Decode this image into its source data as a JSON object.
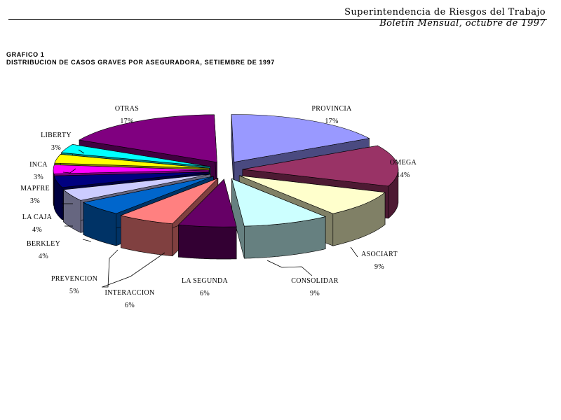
{
  "header": {
    "line1": "Superintendencia de Riesgos del Trabajo",
    "line2": "Boletín Mensual, octubre de 1997"
  },
  "chart_title": {
    "line1": "GRAFICO 1",
    "line2": "DISTRIBUCION DE CASOS GRAVES POR ASEGURADORA, SETIEMBRE DE 1997"
  },
  "chart_data": {
    "type": "pie",
    "title": "DISTRIBUCION DE CASOS GRAVES POR ASEGURADORA, SETIEMBRE DE 1997",
    "exploded": true,
    "three_d": true,
    "slices": [
      {
        "label": "PROVINCIA",
        "value": 17,
        "pct_label": "17%",
        "color": "#9999ff",
        "side": "#4a4a80"
      },
      {
        "label": "OMEGA",
        "value": 14,
        "pct_label": "14%",
        "color": "#993366",
        "side": "#4d1a33"
      },
      {
        "label": "ASOCIART",
        "value": 9,
        "pct_label": "9%",
        "color": "#ffffcc",
        "side": "#808066"
      },
      {
        "label": "CONSOLIDAR",
        "value": 9,
        "pct_label": "9%",
        "color": "#ccffff",
        "side": "#668080"
      },
      {
        "label": "LA SEGUNDA",
        "value": 6,
        "pct_label": "6%",
        "color": "#660066",
        "side": "#330033"
      },
      {
        "label": "INTERACCION",
        "value": 6,
        "pct_label": "6%",
        "color": "#ff8080",
        "side": "#804040"
      },
      {
        "label": "PREVENCION",
        "value": 5,
        "pct_label": "5%",
        "color": "#0066cc",
        "side": "#003366"
      },
      {
        "label": "BERKLEY",
        "value": 4,
        "pct_label": "4%",
        "color": "#ccccff",
        "side": "#666680"
      },
      {
        "label": "LA CAJA",
        "value": 4,
        "pct_label": "4%",
        "color": "#000080",
        "side": "#000040"
      },
      {
        "label": "MAPFRE",
        "value": 3,
        "pct_label": "3%",
        "color": "#ff00ff",
        "side": "#800080"
      },
      {
        "label": "INCA",
        "value": 3,
        "pct_label": "3%",
        "color": "#ffff00",
        "side": "#808000"
      },
      {
        "label": "LIBERTY",
        "value": 3,
        "pct_label": "3%",
        "color": "#00ffff",
        "side": "#008080"
      },
      {
        "label": "OTRAS",
        "value": 17,
        "pct_label": "17%",
        "color": "#800080",
        "side": "#400040"
      }
    ]
  }
}
